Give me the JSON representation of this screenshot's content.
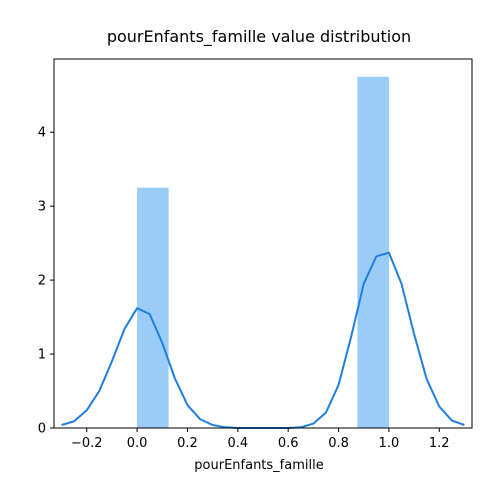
{
  "chart_data": {
    "type": "bar",
    "title": "pourEnfants_famille value distribution",
    "xlabel": "pourEnfants_famille",
    "ylabel": "",
    "xlim": [
      -0.33,
      1.33
    ],
    "ylim": [
      0,
      4.99
    ],
    "x_ticks": [
      -0.2,
      0.0,
      0.2,
      0.4,
      0.6,
      0.8,
      1.0,
      1.2
    ],
    "x_tick_labels": [
      "−0.2",
      "0.0",
      "0.2",
      "0.4",
      "0.6",
      "0.8",
      "1.0",
      "1.2"
    ],
    "y_ticks": [
      0,
      1,
      2,
      3,
      4
    ],
    "y_tick_labels": [
      "0",
      "1",
      "2",
      "3",
      "4"
    ],
    "histogram": {
      "bins": [
        {
          "x0": 0.0,
          "x1": 0.125,
          "value": 3.25
        },
        {
          "x0": 0.875,
          "x1": 1.0,
          "value": 4.75
        }
      ],
      "color": "#9bcbf7"
    },
    "kde": {
      "color": "#1f7fe0",
      "x": [
        -0.3,
        -0.25,
        -0.2,
        -0.15,
        -0.1,
        -0.05,
        0.0,
        0.05,
        0.1,
        0.15,
        0.2,
        0.25,
        0.3,
        0.35,
        0.4,
        0.45,
        0.5,
        0.55,
        0.6,
        0.65,
        0.7,
        0.75,
        0.8,
        0.85,
        0.9,
        0.95,
        1.0,
        1.05,
        1.1,
        1.15,
        1.2,
        1.25,
        1.3
      ],
      "y": [
        0.04,
        0.09,
        0.24,
        0.5,
        0.9,
        1.34,
        1.62,
        1.54,
        1.15,
        0.67,
        0.31,
        0.12,
        0.04,
        0.01,
        0.0,
        0.0,
        0.0,
        0.0,
        0.0,
        0.01,
        0.06,
        0.21,
        0.58,
        1.23,
        1.95,
        2.32,
        2.37,
        1.95,
        1.27,
        0.66,
        0.29,
        0.1,
        0.04
      ]
    }
  }
}
